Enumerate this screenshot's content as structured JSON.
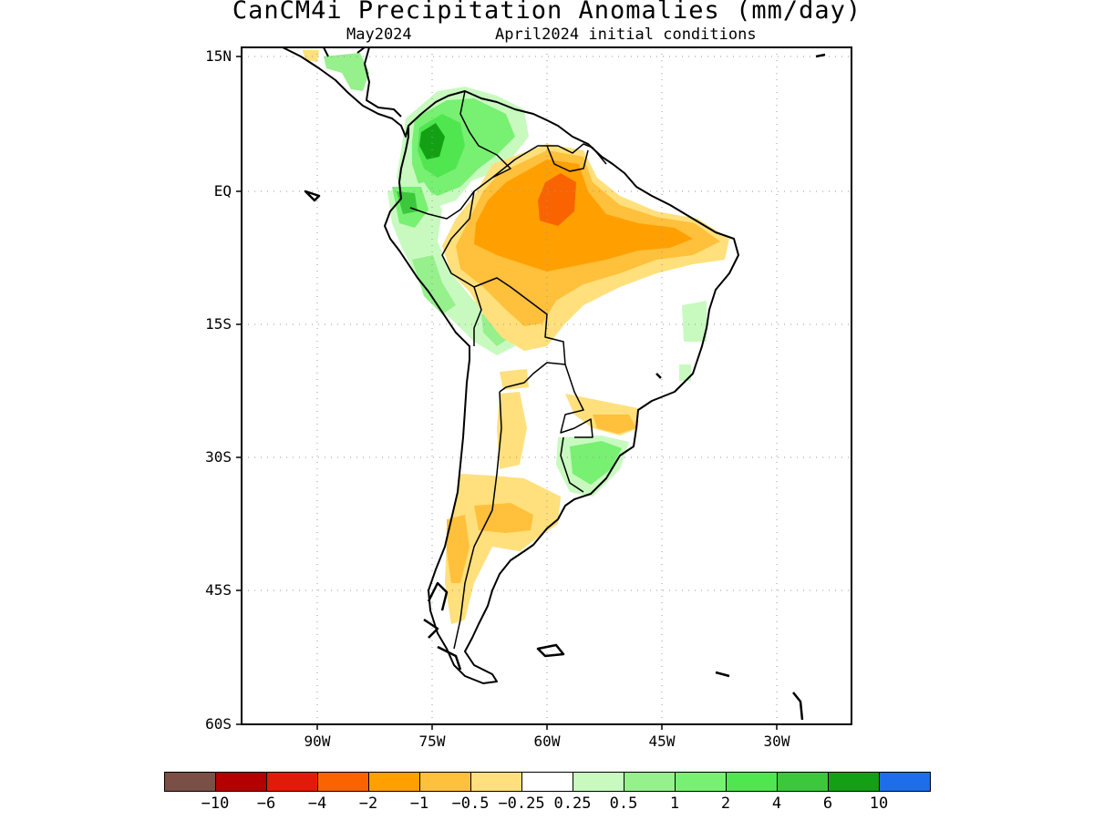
{
  "header": {
    "title": "CanCM4i Precipitation Anomalies (mm/day)",
    "valid_month": "May2024",
    "initial_conditions": "April2024 initial conditions"
  },
  "map": {
    "lat_labels": [
      "15N",
      "EQ",
      "15S",
      "30S",
      "45S",
      "60S"
    ],
    "lon_labels": [
      "90W",
      "75W",
      "60W",
      "45W",
      "30W"
    ],
    "lat_range": [
      -60,
      15
    ],
    "lon_range": [
      -100,
      -20
    ]
  },
  "colorbar": {
    "colors": [
      "#7a5046",
      "#b40000",
      "#e01c08",
      "#fa6400",
      "#ffa000",
      "#ffc03c",
      "#ffe07c",
      "#ffffff",
      "#c8fac0",
      "#96f08c",
      "#78f072",
      "#50e650",
      "#3cc83c",
      "#14a014",
      "#1e6eeb"
    ],
    "labels": [
      "-10",
      "-6",
      "-4",
      "-2",
      "-1",
      "-0.5",
      "-0.25",
      "0.25",
      "0.5",
      "1",
      "2",
      "4",
      "6",
      "10"
    ]
  }
}
